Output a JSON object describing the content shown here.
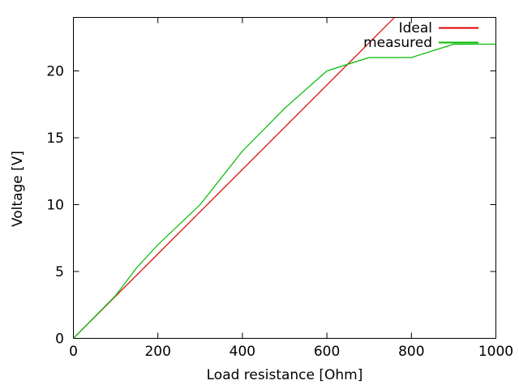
{
  "figure": {
    "background": "#ffffff",
    "axis_color": "#000000",
    "text_color": "#000000"
  },
  "chart_data": {
    "type": "line",
    "title": "",
    "xlabel": "Load resistance [Ohm]",
    "ylabel": "Voltage [V]",
    "xlim": [
      0,
      1000
    ],
    "ylim": [
      0,
      24
    ],
    "xticks": [
      0,
      200,
      400,
      600,
      800,
      1000
    ],
    "yticks": [
      0,
      5,
      10,
      15,
      20
    ],
    "grid": false,
    "legend": {
      "position": "top-right-inside",
      "box": false,
      "entries": [
        "Ideal",
        "measured"
      ]
    },
    "series": [
      {
        "name": "Ideal",
        "color": "#dd0000",
        "points": [
          [
            0,
            0
          ],
          [
            760,
            24
          ]
        ],
        "note": "straight line through origin (~31.6 mV/Ohm), clipped at plot top (24 V) near 760 Ohm"
      },
      {
        "name": "measured",
        "color": "#00bb00",
        "points": [
          [
            0,
            0
          ],
          [
            100,
            3.2
          ],
          [
            150,
            5.3
          ],
          [
            200,
            7
          ],
          [
            300,
            10
          ],
          [
            400,
            14
          ],
          [
            500,
            17.2
          ],
          [
            600,
            20
          ],
          [
            700,
            21
          ],
          [
            800,
            21
          ],
          [
            900,
            22
          ],
          [
            1000,
            22
          ]
        ]
      }
    ]
  }
}
